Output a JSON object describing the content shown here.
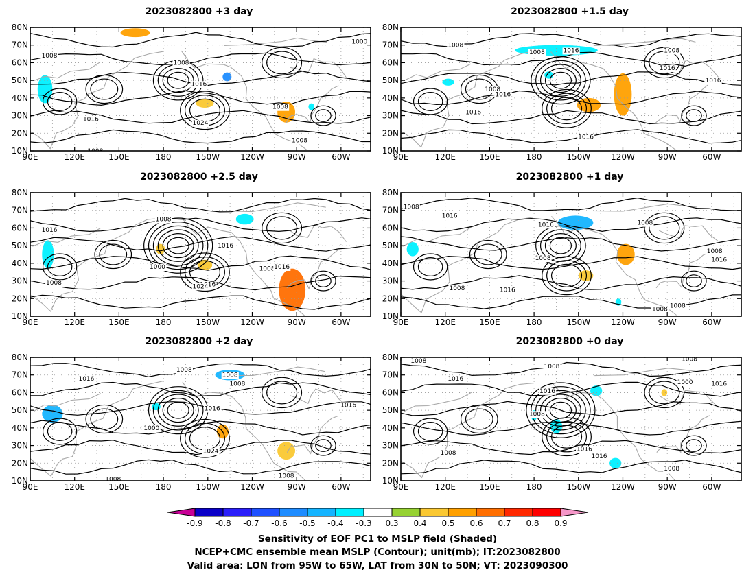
{
  "chart_data": {
    "type": "contour",
    "panels": [
      {
        "title": "2023082800 +3 day",
        "xticks": [
          "90E",
          "120E",
          "150E",
          "180",
          "150W",
          "120W",
          "90W",
          "60W"
        ],
        "yticks": [
          "10N",
          "20N",
          "30N",
          "40N",
          "50N",
          "60N",
          "70N",
          "80N"
        ],
        "contour_labels": [
          {
            "text": "1000",
            "x": -47.5,
            "y": 72
          },
          {
            "text": "1008",
            "x": 103,
            "y": 64
          },
          {
            "text": "1008",
            "x": -168,
            "y": 60
          },
          {
            "text": "1016",
            "x": -156,
            "y": 48
          },
          {
            "text": "1008",
            "x": -101,
            "y": 35
          },
          {
            "text": "1016",
            "x": 131,
            "y": 28
          },
          {
            "text": "1024",
            "x": -155,
            "y": 26
          },
          {
            "text": "1008",
            "x": -88,
            "y": 16
          },
          {
            "text": "1008",
            "x": 134,
            "y": 10
          }
        ],
        "shading": [
          {
            "lon": 100,
            "lat": 45,
            "rx": 5,
            "ry": 8,
            "v": -0.4
          },
          {
            "lon": 161,
            "lat": 77,
            "rx": 10,
            "ry": 2.5,
            "v": 0.5
          },
          {
            "lon": -137,
            "lat": 52,
            "rx": 3,
            "ry": 2.5,
            "v": -0.6
          },
          {
            "lon": -97,
            "lat": 32,
            "rx": 6,
            "ry": 6,
            "v": 0.5
          },
          {
            "lon": -152,
            "lat": 37,
            "rx": 6,
            "ry": 2.5,
            "v": 0.4
          },
          {
            "lon": -80,
            "lat": 35,
            "rx": 2,
            "ry": 2,
            "v": -0.4
          }
        ]
      },
      {
        "title": "2023082800 +1.5 day",
        "xticks": [
          "90E",
          "120E",
          "150E",
          "180",
          "150W",
          "120W",
          "90W",
          "60W"
        ],
        "yticks": [
          "10N",
          "20N",
          "30N",
          "40N",
          "50N",
          "60N",
          "70N",
          "80N"
        ],
        "contour_labels": [
          {
            "text": "1008",
            "x": 127,
            "y": 70
          },
          {
            "text": "1008",
            "x": -178,
            "y": 66
          },
          {
            "text": "1016",
            "x": -155,
            "y": 67
          },
          {
            "text": "1008",
            "x": -87,
            "y": 67
          },
          {
            "text": "1016",
            "x": -90,
            "y": 57
          },
          {
            "text": "1016",
            "x": -59,
            "y": 50
          },
          {
            "text": "1008",
            "x": 152,
            "y": 45
          },
          {
            "text": "1016",
            "x": 159,
            "y": 42
          },
          {
            "text": "1016",
            "x": 139,
            "y": 32
          },
          {
            "text": "1016",
            "x": -145,
            "y": 18
          }
        ],
        "shading": [
          {
            "lon": -165,
            "lat": 67,
            "rx": 28,
            "ry": 3,
            "v": -0.4
          },
          {
            "lon": -120,
            "lat": 42,
            "rx": 6,
            "ry": 12,
            "v": 0.5
          },
          {
            "lon": -143,
            "lat": 36,
            "rx": 8,
            "ry": 4,
            "v": 0.5
          },
          {
            "lon": 122,
            "lat": 49,
            "rx": 4,
            "ry": 2,
            "v": -0.4
          },
          {
            "lon": -170,
            "lat": 53,
            "rx": 3,
            "ry": 2,
            "v": -0.4
          }
        ]
      },
      {
        "title": "2023082800 +2.5 day",
        "xticks": [
          "90E",
          "120E",
          "150E",
          "180",
          "150W",
          "120W",
          "90W",
          "60W"
        ],
        "yticks": [
          "10N",
          "20N",
          "30N",
          "40N",
          "50N",
          "60N",
          "70N",
          "80N"
        ],
        "contour_labels": [
          {
            "text": "1008",
            "x": -180,
            "y": 65
          },
          {
            "text": "1016",
            "x": 103,
            "y": 59
          },
          {
            "text": "1016",
            "x": -138,
            "y": 50
          },
          {
            "text": "1000",
            "x": 176,
            "y": 38
          },
          {
            "text": "1008",
            "x": -110,
            "y": 37
          },
          {
            "text": "1016",
            "x": -100,
            "y": 38
          },
          {
            "text": "1016",
            "x": -150,
            "y": 28
          },
          {
            "text": "1024",
            "x": -155,
            "y": 27
          },
          {
            "text": "1008",
            "x": 106,
            "y": 29
          }
        ],
        "shading": [
          {
            "lon": 102,
            "lat": 45,
            "rx": 4,
            "ry": 8,
            "v": -0.4
          },
          {
            "lon": -93,
            "lat": 25,
            "rx": 9,
            "ry": 12,
            "v": 0.6
          },
          {
            "lon": -152,
            "lat": 39,
            "rx": 5,
            "ry": 3,
            "v": 0.4
          },
          {
            "lon": -125,
            "lat": 65,
            "rx": 6,
            "ry": 3,
            "v": -0.3
          },
          {
            "lon": 178,
            "lat": 48,
            "rx": 3,
            "ry": 3,
            "v": 0.4
          }
        ]
      },
      {
        "title": "2023082800 +1 day",
        "xticks": [
          "90E",
          "120E",
          "150E",
          "180",
          "150W",
          "120W",
          "90W",
          "60W"
        ],
        "yticks": [
          "10N",
          "20N",
          "30N",
          "40N",
          "50N",
          "60N",
          "70N",
          "80N"
        ],
        "contour_labels": [
          {
            "text": "1008",
            "x": 97,
            "y": 72
          },
          {
            "text": "1016",
            "x": 123,
            "y": 67
          },
          {
            "text": "1016",
            "x": -172,
            "y": 62
          },
          {
            "text": "1008",
            "x": -105,
            "y": 63
          },
          {
            "text": "1008",
            "x": -174,
            "y": 43
          },
          {
            "text": "1008",
            "x": -58,
            "y": 47
          },
          {
            "text": "1016",
            "x": -55,
            "y": 42
          },
          {
            "text": "1008",
            "x": 128,
            "y": 26
          },
          {
            "text": "1016",
            "x": 162,
            "y": 25
          },
          {
            "text": "1008",
            "x": -83,
            "y": 16
          },
          {
            "text": "1008",
            "x": -95,
            "y": 14
          }
        ],
        "shading": [
          {
            "lon": -152,
            "lat": 63,
            "rx": 12,
            "ry": 4,
            "v": -0.5
          },
          {
            "lon": -118,
            "lat": 45,
            "rx": 6,
            "ry": 6,
            "v": 0.5
          },
          {
            "lon": 98,
            "lat": 48,
            "rx": 4,
            "ry": 4,
            "v": -0.4
          },
          {
            "lon": -145,
            "lat": 33,
            "rx": 5,
            "ry": 3,
            "v": 0.4
          },
          {
            "lon": -123,
            "lat": 18,
            "rx": 2,
            "ry": 2,
            "v": -0.3
          }
        ]
      },
      {
        "title": "2023082800 +2 day",
        "xticks": [
          "90E",
          "120E",
          "150E",
          "180",
          "150W",
          "120W",
          "90W",
          "60W"
        ],
        "yticks": [
          "10N",
          "20N",
          "30N",
          "40N",
          "50N",
          "60N",
          "70N",
          "80N"
        ],
        "contour_labels": [
          {
            "text": "1008",
            "x": -166,
            "y": 73
          },
          {
            "text": "1016",
            "x": 128,
            "y": 68
          },
          {
            "text": "1008",
            "x": -135,
            "y": 70
          },
          {
            "text": "1008",
            "x": -130,
            "y": 65
          },
          {
            "text": "1016",
            "x": -55,
            "y": 53
          },
          {
            "text": "1016",
            "x": -147,
            "y": 51
          },
          {
            "text": "1000",
            "x": 172,
            "y": 40
          },
          {
            "text": "1024",
            "x": -148,
            "y": 27
          },
          {
            "text": "1008",
            "x": -97,
            "y": 13
          },
          {
            "text": "1008",
            "x": 146,
            "y": 11
          }
        ],
        "shading": [
          {
            "lon": -135,
            "lat": 70,
            "rx": 10,
            "ry": 3,
            "v": -0.5
          },
          {
            "lon": 105,
            "lat": 48,
            "rx": 7,
            "ry": 5,
            "v": -0.5
          },
          {
            "lon": -140,
            "lat": 38,
            "rx": 4,
            "ry": 4,
            "v": 0.5
          },
          {
            "lon": -97,
            "lat": 27,
            "rx": 6,
            "ry": 5,
            "v": 0.4
          },
          {
            "lon": -185,
            "lat": 52,
            "rx": 3,
            "ry": 2,
            "v": -0.3
          }
        ]
      },
      {
        "title": "2023082800 +0 day",
        "xticks": [
          "90E",
          "120E",
          "150E",
          "180",
          "150W",
          "120W",
          "90W",
          "60W"
        ],
        "yticks": [
          "10N",
          "20N",
          "30N",
          "40N",
          "50N",
          "60N",
          "70N",
          "80N"
        ],
        "contour_labels": [
          {
            "text": "1008",
            "x": 102,
            "y": 78
          },
          {
            "text": "1008",
            "x": -75,
            "y": 79
          },
          {
            "text": "1008",
            "x": -168,
            "y": 75
          },
          {
            "text": "1016",
            "x": 127,
            "y": 68
          },
          {
            "text": "1000",
            "x": -78,
            "y": 66
          },
          {
            "text": "1016",
            "x": -55,
            "y": 65
          },
          {
            "text": "1016",
            "x": -171,
            "y": 61
          },
          {
            "text": "1008",
            "x": -178,
            "y": 48
          },
          {
            "text": "1008",
            "x": 122,
            "y": 26
          },
          {
            "text": "1016",
            "x": -146,
            "y": 28
          },
          {
            "text": "1016",
            "x": -136,
            "y": 24
          },
          {
            "text": "1008",
            "x": -87,
            "y": 17
          }
        ],
        "shading": [
          {
            "lon": -165,
            "lat": 41,
            "rx": 4,
            "ry": 4,
            "v": -0.4
          },
          {
            "lon": -138,
            "lat": 61,
            "rx": 4,
            "ry": 3,
            "v": -0.4
          },
          {
            "lon": -125,
            "lat": 20,
            "rx": 4,
            "ry": 3,
            "v": -0.4
          },
          {
            "lon": -180,
            "lat": 47,
            "rx": 2,
            "ry": 3,
            "v": -0.4
          },
          {
            "lon": -92,
            "lat": 60,
            "rx": 2,
            "ry": 2,
            "v": 0.4
          }
        ]
      }
    ],
    "colorbar": {
      "ticks": [
        "-0.9",
        "-0.8",
        "-0.7",
        "-0.6",
        "-0.5",
        "-0.4",
        "-0.3",
        "0.3",
        "0.4",
        "0.5",
        "0.6",
        "0.7",
        "0.8",
        "0.9"
      ],
      "colors": [
        "#0a00c8",
        "#2a1efa",
        "#1e50ff",
        "#1e8cff",
        "#14b4ff",
        "#00f0ff",
        "#ffffff",
        "#96d232",
        "#fac832",
        "#ffa000",
        "#ff6e00",
        "#ff2800",
        "#fe0000",
        "#c80096"
      ],
      "end_low": "#c80096",
      "end_high": "#f596c8"
    }
  },
  "captions": {
    "line1": "Sensitivity of EOF PC1 to MSLP field (Shaded)",
    "line2": "NCEP+CMC ensemble mean MSLP (Contour); unit(mb); IT:2023082800",
    "line3": "Valid area: LON from 95W to 65W, LAT from 30N to 50N; VT: 2023090300"
  }
}
